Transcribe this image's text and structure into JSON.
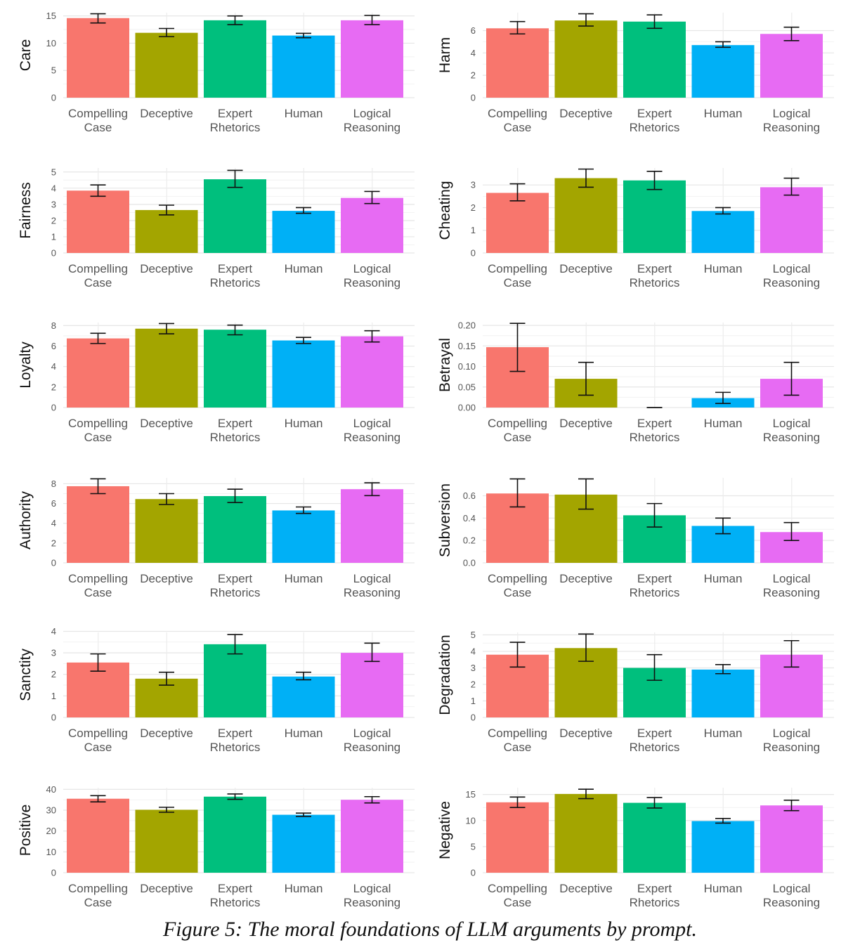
{
  "caption": "Figure 5: The moral foundations of LLM arguments by prompt.",
  "colors": [
    "#F8766D",
    "#A3A500",
    "#00BF7D",
    "#00B0F6",
    "#E76BF3"
  ],
  "chart_data": [
    {
      "type": "bar",
      "ylabel": "Care",
      "categories": [
        "Compelling\nCase",
        "Deceptive",
        "Expert\nRhetorics",
        "Human",
        "Logical\nReasoning"
      ],
      "values": [
        14.6,
        11.9,
        14.2,
        11.4,
        14.2
      ],
      "err_low": [
        13.7,
        11.2,
        13.4,
        11.0,
        13.4
      ],
      "err_high": [
        15.4,
        12.7,
        15.0,
        11.8,
        15.1
      ],
      "ylim": [
        0,
        15.6
      ],
      "yticks": [
        0,
        5,
        10,
        15
      ],
      "grid": true
    },
    {
      "type": "bar",
      "ylabel": "Harm",
      "categories": [
        "Compelling\nCase",
        "Deceptive",
        "Expert\nRhetorics",
        "Human",
        "Logical\nReasoning"
      ],
      "values": [
        6.2,
        6.9,
        6.8,
        4.7,
        5.7
      ],
      "err_low": [
        5.7,
        6.4,
        6.2,
        4.5,
        5.1
      ],
      "err_high": [
        6.8,
        7.5,
        7.4,
        5.0,
        6.3
      ],
      "ylim": [
        0,
        7.6
      ],
      "yticks": [
        0,
        2,
        4,
        6
      ],
      "grid": true
    },
    {
      "type": "bar",
      "ylabel": "Fairness",
      "categories": [
        "Compelling\nCase",
        "Deceptive",
        "Expert\nRhetorics",
        "Human",
        "Logical\nReasoning"
      ],
      "values": [
        3.85,
        2.65,
        4.55,
        2.6,
        3.4
      ],
      "err_low": [
        3.5,
        2.35,
        4.05,
        2.45,
        3.05
      ],
      "err_high": [
        4.2,
        2.95,
        5.1,
        2.8,
        3.8
      ],
      "ylim": [
        0,
        5.25
      ],
      "yticks": [
        0,
        1,
        2,
        3,
        4,
        5
      ],
      "grid": true
    },
    {
      "type": "bar",
      "ylabel": "Cheating",
      "categories": [
        "Compelling\nCase",
        "Deceptive",
        "Expert\nRhetorics",
        "Human",
        "Logical\nReasoning"
      ],
      "values": [
        2.65,
        3.3,
        3.2,
        1.85,
        2.9
      ],
      "err_low": [
        2.3,
        2.9,
        2.8,
        1.72,
        2.55
      ],
      "err_high": [
        3.05,
        3.7,
        3.6,
        2.0,
        3.3
      ],
      "ylim": [
        0,
        3.75
      ],
      "yticks": [
        0,
        1,
        2,
        3
      ],
      "grid": true
    },
    {
      "type": "bar",
      "ylabel": "Loyalty",
      "categories": [
        "Compelling\nCase",
        "Deceptive",
        "Expert\nRhetorics",
        "Human",
        "Logical\nReasoning"
      ],
      "values": [
        6.75,
        7.7,
        7.6,
        6.55,
        6.95
      ],
      "err_low": [
        6.25,
        7.2,
        7.1,
        6.25,
        6.4
      ],
      "err_high": [
        7.25,
        8.2,
        8.05,
        6.85,
        7.5
      ],
      "ylim": [
        0,
        8.3
      ],
      "yticks": [
        0,
        2,
        4,
        6,
        8
      ],
      "grid": true
    },
    {
      "type": "bar",
      "ylabel": "Betrayal",
      "categories": [
        "Compelling\nCase",
        "Deceptive",
        "Expert\nRhetorics",
        "Human",
        "Logical\nReasoning"
      ],
      "values": [
        0.147,
        0.07,
        0.0,
        0.023,
        0.07
      ],
      "err_low": [
        0.088,
        0.03,
        0.0,
        0.01,
        0.03
      ],
      "err_high": [
        0.205,
        0.11,
        0.0,
        0.037,
        0.11
      ],
      "ylim": [
        0,
        0.207
      ],
      "yticks": [
        0.0,
        0.05,
        0.1,
        0.15,
        0.2
      ],
      "ytick_labels": [
        "0.00",
        "0.05",
        "0.10",
        "0.15",
        "0.20"
      ],
      "grid": true
    },
    {
      "type": "bar",
      "ylabel": "Authority",
      "categories": [
        "Compelling\nCase",
        "Deceptive",
        "Expert\nRhetorics",
        "Human",
        "Logical\nReasoning"
      ],
      "values": [
        7.75,
        6.45,
        6.75,
        5.3,
        7.45
      ],
      "err_low": [
        7.0,
        5.9,
        6.1,
        5.0,
        6.8
      ],
      "err_high": [
        8.5,
        7.0,
        7.45,
        5.65,
        8.1
      ],
      "ylim": [
        0,
        8.6
      ],
      "yticks": [
        0,
        2,
        4,
        6,
        8
      ],
      "grid": true
    },
    {
      "type": "bar",
      "ylabel": "Subversion",
      "categories": [
        "Compelling\nCase",
        "Deceptive",
        "Expert\nRhetorics",
        "Human",
        "Logical\nReasoning"
      ],
      "values": [
        0.62,
        0.61,
        0.425,
        0.33,
        0.275
      ],
      "err_low": [
        0.5,
        0.48,
        0.32,
        0.26,
        0.2
      ],
      "err_high": [
        0.75,
        0.75,
        0.53,
        0.4,
        0.36
      ],
      "ylim": [
        0,
        0.76
      ],
      "yticks": [
        0.0,
        0.2,
        0.4,
        0.6
      ],
      "ytick_labels": [
        "0.0",
        "0.2",
        "0.4",
        "0.6"
      ],
      "grid": true
    },
    {
      "type": "bar",
      "ylabel": "Sanctity",
      "categories": [
        "Compelling\nCase",
        "Deceptive",
        "Expert\nRhetorics",
        "Human",
        "Logical\nReasoning"
      ],
      "values": [
        2.55,
        1.8,
        3.4,
        1.9,
        3.0
      ],
      "err_low": [
        2.15,
        1.5,
        2.95,
        1.75,
        2.6
      ],
      "err_high": [
        2.95,
        2.1,
        3.85,
        2.1,
        3.45
      ],
      "ylim": [
        0,
        3.95
      ],
      "yticks": [
        0,
        1,
        2,
        3,
        4
      ],
      "grid": true
    },
    {
      "type": "bar",
      "ylabel": "Degradation",
      "categories": [
        "Compelling\nCase",
        "Deceptive",
        "Expert\nRhetorics",
        "Human",
        "Logical\nReasoning"
      ],
      "values": [
        3.8,
        4.2,
        3.0,
        2.9,
        3.8
      ],
      "err_low": [
        3.05,
        3.4,
        2.25,
        2.65,
        3.05
      ],
      "err_high": [
        4.55,
        5.05,
        3.8,
        3.2,
        4.65
      ],
      "ylim": [
        0,
        5.15
      ],
      "yticks": [
        0,
        1,
        2,
        3,
        4,
        5
      ],
      "grid": true
    },
    {
      "type": "bar",
      "ylabel": "Positive",
      "categories": [
        "Compelling\nCase",
        "Deceptive",
        "Expert\nRhetorics",
        "Human",
        "Logical\nReasoning"
      ],
      "values": [
        35.5,
        30.2,
        36.5,
        27.8,
        35.0
      ],
      "err_low": [
        34.0,
        29.0,
        35.2,
        27.0,
        33.5
      ],
      "err_high": [
        37.0,
        31.4,
        37.8,
        28.6,
        36.5
      ],
      "ylim": [
        0,
        40.8
      ],
      "yticks": [
        0,
        10,
        20,
        30,
        40
      ],
      "grid": true
    },
    {
      "type": "bar",
      "ylabel": "Negative",
      "categories": [
        "Compelling\nCase",
        "Deceptive",
        "Expert\nRhetorics",
        "Human",
        "Logical\nReasoning"
      ],
      "values": [
        13.5,
        15.1,
        13.4,
        9.9,
        12.9
      ],
      "err_low": [
        12.5,
        14.2,
        12.4,
        9.5,
        11.9
      ],
      "err_high": [
        14.5,
        16.0,
        14.4,
        10.4,
        13.9
      ],
      "ylim": [
        0,
        16.3
      ],
      "yticks": [
        0,
        5,
        10,
        15
      ],
      "grid": true
    }
  ]
}
